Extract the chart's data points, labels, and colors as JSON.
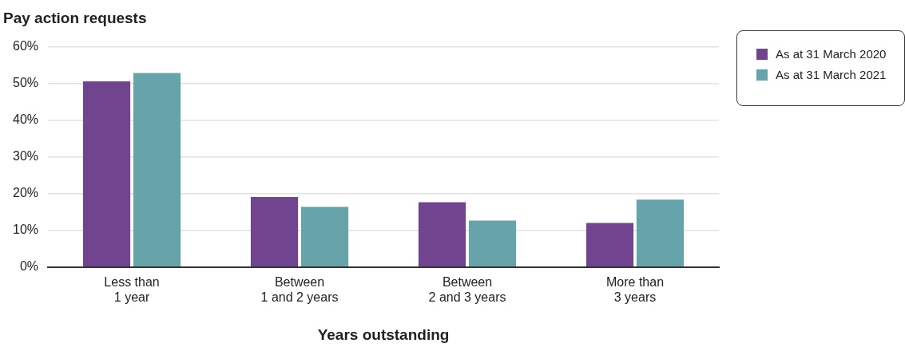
{
  "chart_data": {
    "type": "bar",
    "title": "Pay action requests",
    "xlabel": "Years outstanding",
    "categories": [
      "Less than\n1 year",
      "Between\n1 and 2 years",
      "Between\n2 and 3 years",
      "More than\n3 years"
    ],
    "series": [
      {
        "name": "As at 31 March 2020",
        "color": "#71448f",
        "values": [
          50.6,
          19.1,
          17.7,
          12.0
        ]
      },
      {
        "name": "As at 31 March 2021",
        "color": "#66a3aa",
        "values": [
          52.9,
          16.4,
          12.7,
          18.4
        ]
      }
    ],
    "ylim": [
      0,
      60
    ],
    "yticks": [
      {
        "value": 0,
        "label": "0%"
      },
      {
        "value": 10,
        "label": "10%"
      },
      {
        "value": 20,
        "label": "20%"
      },
      {
        "value": 30,
        "label": "30%"
      },
      {
        "value": 40,
        "label": "40%"
      },
      {
        "value": 50,
        "label": "50%"
      },
      {
        "value": 60,
        "label": "60%"
      }
    ],
    "grid": "y",
    "legend": "top right"
  }
}
